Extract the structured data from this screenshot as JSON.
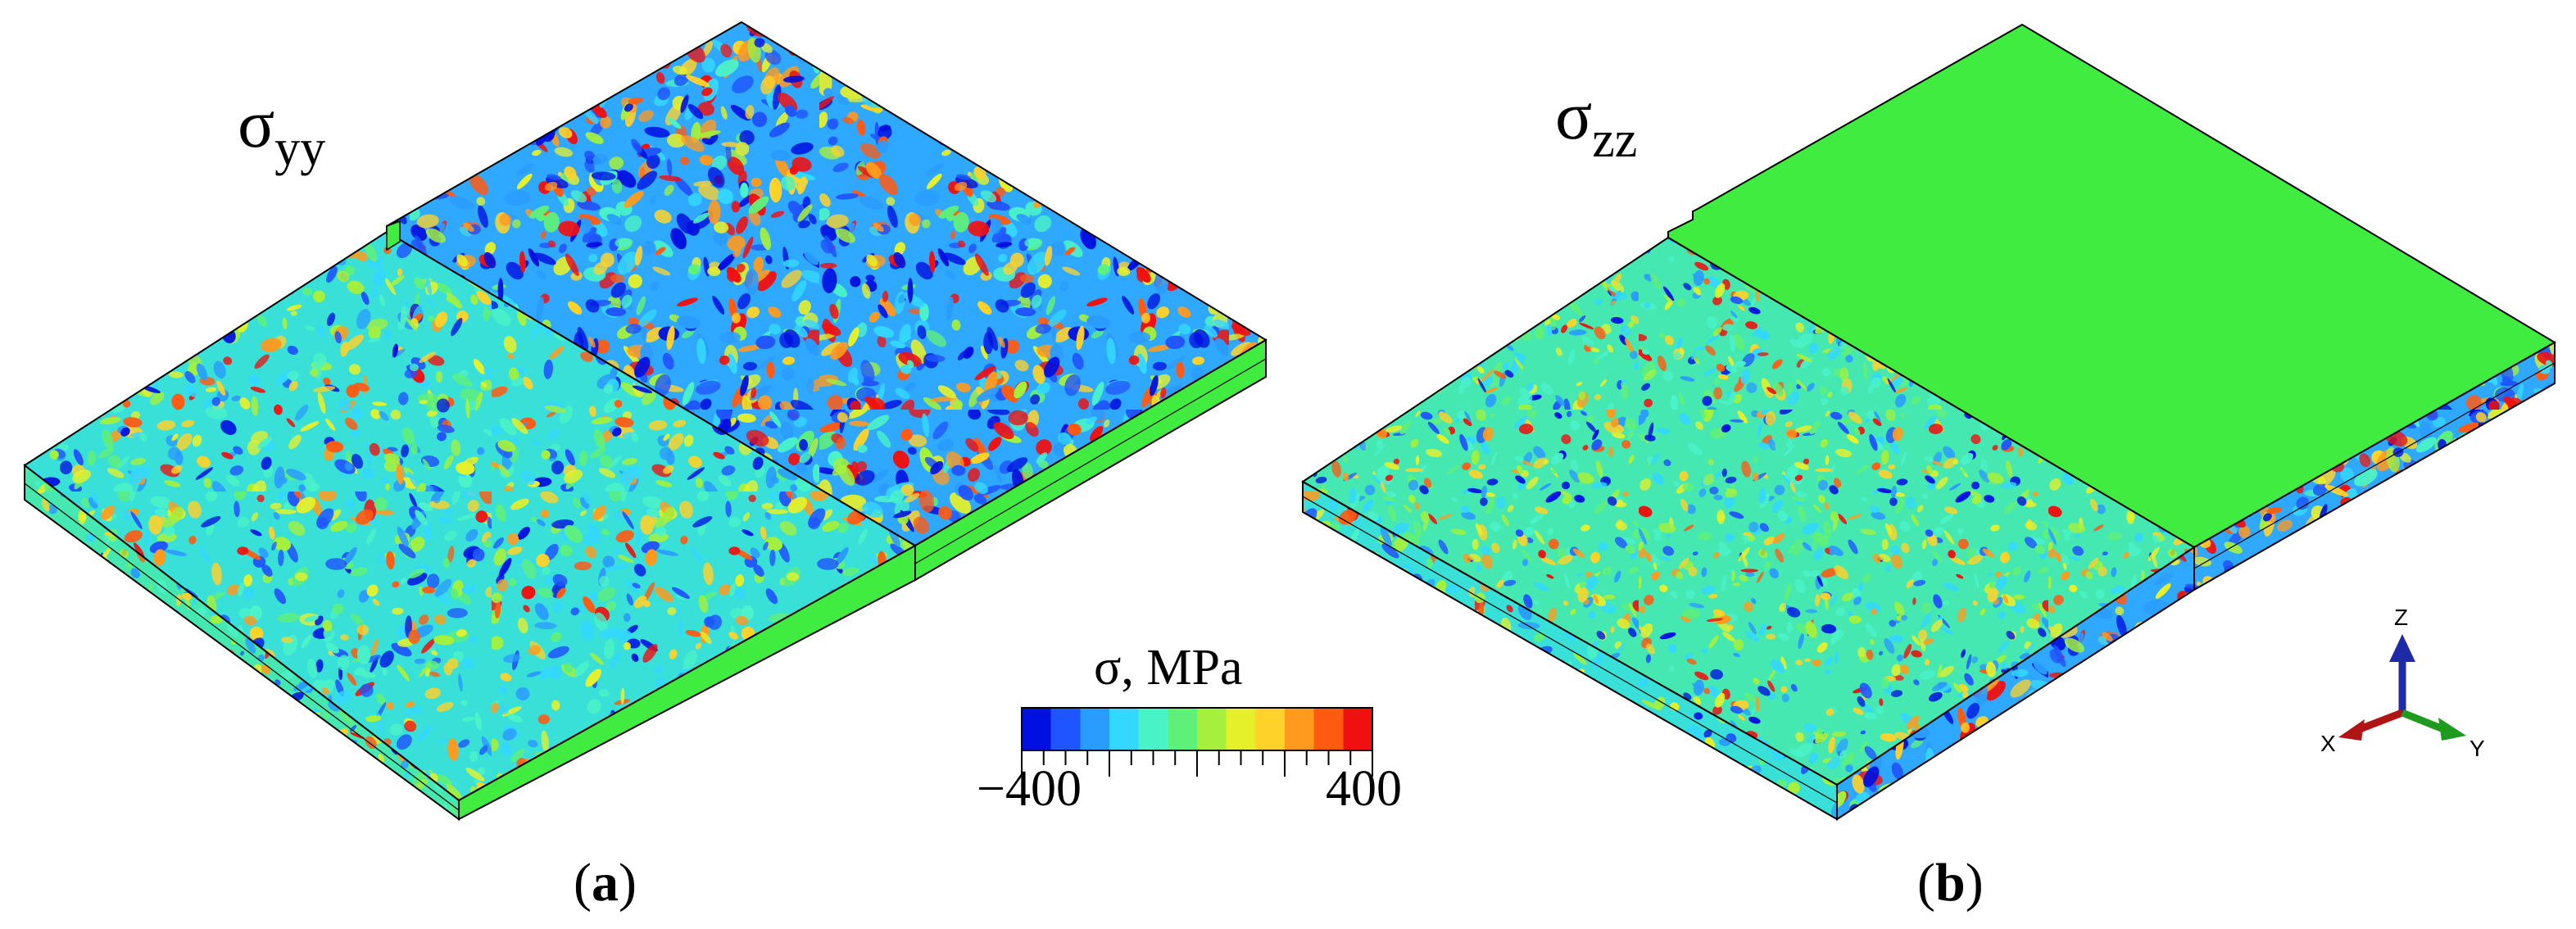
{
  "panels": [
    {
      "id": "a",
      "stress_symbol": "σ",
      "stress_subscript": "yy",
      "label_open": "(",
      "label_letter": "a",
      "label_close": ")",
      "top_surface": "mottled",
      "front_face": "mottled",
      "right_top": "mottled",
      "right_side": "uniform"
    },
    {
      "id": "b",
      "stress_symbol": "σ",
      "stress_subscript": "zz",
      "label_open": "(",
      "label_letter": "b",
      "label_close": ")",
      "top_surface": "mottled",
      "front_face": "mottled",
      "right_top": "uniform",
      "right_side": "mottled"
    }
  ],
  "colorbar": {
    "title": "σ, MPa",
    "min_label": "−400",
    "max_label": "400",
    "min": -400,
    "max": 400,
    "colors": [
      "#0010e0",
      "#1f55ff",
      "#2a9cff",
      "#33d8ff",
      "#4af2c8",
      "#5ff07a",
      "#a4f03c",
      "#e6f02a",
      "#ffd22a",
      "#ff9a1e",
      "#ff5a12",
      "#f01010"
    ]
  },
  "axes_triad": {
    "z_label": "Z",
    "x_label": "X",
    "y_label": "Y",
    "z_color": "#1e2aa8",
    "x_color": "#b01414",
    "y_color": "#1e9a1e"
  },
  "colors": {
    "uniform_green": "#40ec40",
    "edge": "#000000"
  }
}
